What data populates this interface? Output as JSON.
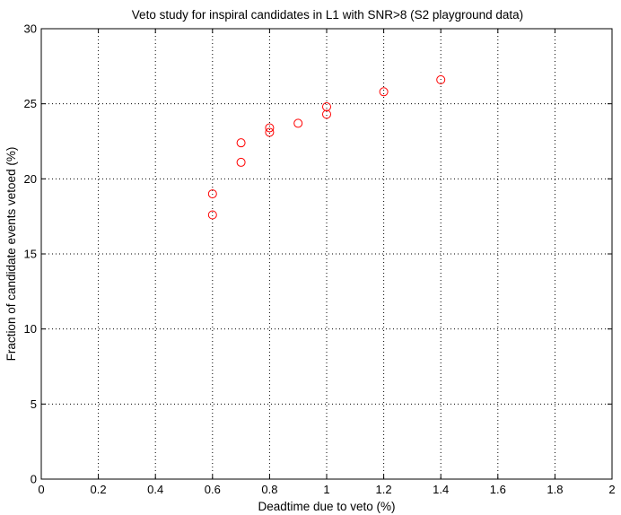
{
  "chart_data": {
    "type": "scatter",
    "title": "Veto study for inspiral candidates in L1 with SNR>8 (S2 playground data)",
    "xlabel": "Deadtime due to veto (%)",
    "ylabel": "Fraction of candidate events vetoed (%)",
    "xlim": [
      0,
      2
    ],
    "ylim": [
      0,
      30
    ],
    "xticks": [
      0,
      0.2,
      0.4,
      0.6,
      0.8,
      1,
      1.2,
      1.4,
      1.6,
      1.8,
      2
    ],
    "xtick_labels": [
      "0",
      "0.2",
      "0.4",
      "0.6",
      "0.8",
      "1",
      "1.2",
      "1.4",
      "1.6",
      "1.8",
      "2"
    ],
    "yticks": [
      0,
      5,
      10,
      15,
      20,
      25,
      30
    ],
    "ytick_labels": [
      "0",
      "5",
      "10",
      "15",
      "20",
      "25",
      "30"
    ],
    "grid": true,
    "grid_style": "dotted",
    "marker": "circle-open",
    "marker_color": "#ff0000",
    "series": [
      {
        "x": [
          0.6,
          0.6,
          0.7,
          0.7,
          0.8,
          0.8,
          0.9,
          1.0,
          1.0,
          1.2,
          1.4
        ],
        "y": [
          17.6,
          19.0,
          21.1,
          22.4,
          23.1,
          23.4,
          23.7,
          24.3,
          24.8,
          25.8,
          26.6
        ]
      }
    ]
  }
}
